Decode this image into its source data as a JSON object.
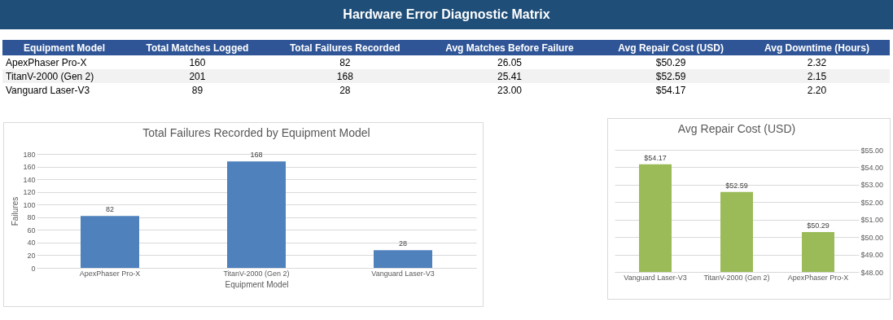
{
  "chart_data": [
    {
      "type": "other",
      "title": "Hardware Error Diagnostic Matrix",
      "categories": [
        "Equipment Model",
        "Total Matches Logged",
        "Total Failures Recorded",
        "Avg Matches Before Failure",
        "Avg Repair Cost (USD)",
        "Avg Downtime (Hours)"
      ],
      "annotations": [
        "ApexPhaser Pro-X",
        "160",
        "82",
        "26.05",
        "$50.29",
        "2.32",
        "TitanV-2000 (Gen 2)",
        "201",
        "168",
        "25.41",
        "$52.59",
        "2.15",
        "Vanguard Laser-V3",
        "89",
        "28",
        "23.00",
        "$54.17",
        "2.20"
      ]
    },
    {
      "type": "bar",
      "title": "Total Failures Recorded by Equipment Model",
      "xlabel": "Equipment Model",
      "ylabel": "Failures",
      "categories": [
        "ApexPhaser Pro-X",
        "TitanV-2000 (Gen 2)",
        "Vanguard Laser-V3"
      ],
      "series": [
        {
          "color": "#4f81bd",
          "values": [
            82,
            168,
            28
          ]
        }
      ],
      "ylim": [
        0,
        180
      ],
      "yticks": [
        0,
        20,
        40,
        60,
        80,
        100,
        120,
        140,
        160,
        180
      ],
      "grid": "y",
      "data_labels": true
    },
    {
      "type": "bar",
      "title": "Avg Repair Cost (USD)",
      "categories": [
        "Vanguard Laser-V3",
        "TitanV-2000 (Gen 2)",
        "ApexPhaser Pro-X"
      ],
      "series": [
        {
          "color": "#9bbb59",
          "axis": "y2",
          "values": [
            54.17,
            52.59,
            50.29
          ],
          "value_labels": [
            "$54.17",
            "$52.59",
            "$50.29"
          ]
        }
      ],
      "y2lim": [
        48,
        55
      ],
      "y2ticks": [
        {
          "value": 48,
          "label": "$48.00"
        },
        {
          "value": 49,
          "label": "$49.00"
        },
        {
          "value": 50,
          "label": "$50.00"
        },
        {
          "value": 51,
          "label": "$51.00"
        },
        {
          "value": 52,
          "label": "$52.00"
        },
        {
          "value": 53,
          "label": "$53.00"
        },
        {
          "value": 54,
          "label": "$54.00"
        },
        {
          "value": 55,
          "label": "$55.00"
        }
      ],
      "grid": "y"
    }
  ]
}
